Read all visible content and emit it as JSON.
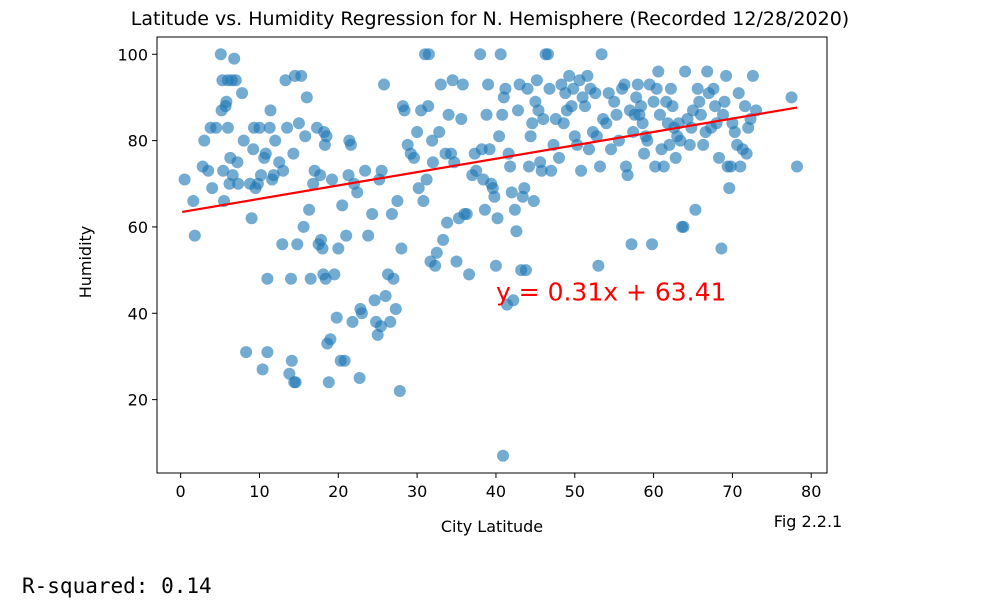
{
  "chart_data": {
    "type": "scatter",
    "title": "Latitude vs. Humidity Regression for N. Hemisphere (Recorded 12/28/2020)",
    "xlabel": "City Latitude",
    "ylabel": "Humidity",
    "xlim": [
      -3,
      82
    ],
    "ylim": [
      3,
      104
    ],
    "xticks": [
      0,
      10,
      20,
      30,
      40,
      50,
      60,
      70,
      80
    ],
    "yticks": [
      20,
      40,
      60,
      80,
      100
    ],
    "grid": false,
    "point_color": "#1f77b4",
    "line_color": "#ff0000",
    "regression": {
      "slope": 0.31,
      "intercept": 63.41,
      "x_range": [
        0.2,
        78.2
      ],
      "equation_label": "y = 0.31x + 63.41",
      "label_at": [
        40,
        45
      ]
    },
    "figure_label": "Fig 2.2.1",
    "points": [
      [
        0.5,
        71
      ],
      [
        1.6,
        66
      ],
      [
        1.8,
        58
      ],
      [
        2.8,
        74
      ],
      [
        3,
        80
      ],
      [
        3.5,
        73
      ],
      [
        3.8,
        83
      ],
      [
        4,
        69
      ],
      [
        4.5,
        83
      ],
      [
        5.1,
        100
      ],
      [
        5.2,
        87
      ],
      [
        5.3,
        94
      ],
      [
        5.4,
        73
      ],
      [
        5.5,
        66
      ],
      [
        5.7,
        88
      ],
      [
        5.8,
        89
      ],
      [
        6,
        83
      ],
      [
        6,
        94
      ],
      [
        6.2,
        70
      ],
      [
        6.3,
        76
      ],
      [
        6.5,
        94
      ],
      [
        6.6,
        72
      ],
      [
        6.8,
        99
      ],
      [
        7,
        94
      ],
      [
        7.2,
        75
      ],
      [
        7.3,
        70
      ],
      [
        7.8,
        91
      ],
      [
        8,
        80
      ],
      [
        8.3,
        31
      ],
      [
        8.8,
        70
      ],
      [
        9,
        62
      ],
      [
        9.2,
        78
      ],
      [
        9.3,
        83
      ],
      [
        9.5,
        69
      ],
      [
        9.8,
        70
      ],
      [
        10,
        83
      ],
      [
        10.2,
        72
      ],
      [
        10.4,
        27
      ],
      [
        10.6,
        76
      ],
      [
        10.8,
        77
      ],
      [
        11,
        31
      ],
      [
        11,
        48
      ],
      [
        11.3,
        83
      ],
      [
        11.4,
        87
      ],
      [
        11.6,
        71
      ],
      [
        11.8,
        72
      ],
      [
        12,
        80
      ],
      [
        12.5,
        75
      ],
      [
        12.9,
        56
      ],
      [
        13,
        73
      ],
      [
        13.3,
        94
      ],
      [
        13.5,
        83
      ],
      [
        13.8,
        26
      ],
      [
        14,
        48
      ],
      [
        14.1,
        29
      ],
      [
        14.3,
        77
      ],
      [
        14.4,
        24
      ],
      [
        14.5,
        95
      ],
      [
        14.6,
        24
      ],
      [
        14.8,
        56
      ],
      [
        15,
        84
      ],
      [
        15.3,
        95
      ],
      [
        15.6,
        60
      ],
      [
        15.8,
        81
      ],
      [
        16,
        90
      ],
      [
        16.3,
        64
      ],
      [
        16.5,
        48
      ],
      [
        16.8,
        70
      ],
      [
        17,
        73
      ],
      [
        17.3,
        83
      ],
      [
        17.5,
        56
      ],
      [
        17.7,
        72
      ],
      [
        17.8,
        57
      ],
      [
        18,
        55
      ],
      [
        18.1,
        49
      ],
      [
        18.2,
        82
      ],
      [
        18.3,
        79
      ],
      [
        18.4,
        48
      ],
      [
        18.5,
        81
      ],
      [
        18.6,
        33
      ],
      [
        18.8,
        24
      ],
      [
        19,
        34
      ],
      [
        19.2,
        71
      ],
      [
        19.5,
        49
      ],
      [
        19.8,
        39
      ],
      [
        20,
        55
      ],
      [
        20.3,
        29
      ],
      [
        20.5,
        65
      ],
      [
        20.8,
        29
      ],
      [
        21,
        58
      ],
      [
        21.3,
        72
      ],
      [
        21.4,
        80
      ],
      [
        21.6,
        79
      ],
      [
        21.8,
        38
      ],
      [
        22,
        70
      ],
      [
        22.4,
        68
      ],
      [
        22.7,
        25
      ],
      [
        22.8,
        41
      ],
      [
        23,
        40
      ],
      [
        23.4,
        73
      ],
      [
        23.8,
        58
      ],
      [
        24.3,
        63
      ],
      [
        24.6,
        43
      ],
      [
        24.8,
        38
      ],
      [
        25,
        35
      ],
      [
        25.2,
        71
      ],
      [
        25.4,
        37
      ],
      [
        25.5,
        73
      ],
      [
        25.8,
        93
      ],
      [
        26,
        44
      ],
      [
        26.3,
        49
      ],
      [
        26.6,
        38
      ],
      [
        26.8,
        63
      ],
      [
        27,
        48
      ],
      [
        27.3,
        41
      ],
      [
        27.5,
        66
      ],
      [
        27.8,
        22
      ],
      [
        28,
        55
      ],
      [
        28.2,
        88
      ],
      [
        28.4,
        87
      ],
      [
        28.8,
        79
      ],
      [
        29.2,
        77
      ],
      [
        29.6,
        76
      ],
      [
        30,
        82
      ],
      [
        30.2,
        69
      ],
      [
        30.5,
        87
      ],
      [
        30.8,
        66
      ],
      [
        31,
        100
      ],
      [
        31.2,
        71
      ],
      [
        31.4,
        88
      ],
      [
        31.5,
        100
      ],
      [
        31.7,
        52
      ],
      [
        31.9,
        80
      ],
      [
        32,
        75
      ],
      [
        32.3,
        51
      ],
      [
        32.5,
        54
      ],
      [
        32.8,
        82
      ],
      [
        33,
        93
      ],
      [
        33.3,
        57
      ],
      [
        33.6,
        77
      ],
      [
        33.8,
        61
      ],
      [
        34,
        86
      ],
      [
        34.3,
        77
      ],
      [
        34.5,
        94
      ],
      [
        34.7,
        75
      ],
      [
        35,
        52
      ],
      [
        35.3,
        62
      ],
      [
        35.6,
        85
      ],
      [
        35.8,
        93
      ],
      [
        36,
        63
      ],
      [
        36.3,
        63
      ],
      [
        36.6,
        49
      ],
      [
        37,
        72
      ],
      [
        37.3,
        77
      ],
      [
        37.5,
        73
      ],
      [
        38,
        100
      ],
      [
        38.2,
        78
      ],
      [
        38.4,
        71
      ],
      [
        38.6,
        64
      ],
      [
        38.8,
        86
      ],
      [
        39,
        93
      ],
      [
        39.2,
        78
      ],
      [
        39.4,
        70
      ],
      [
        39.6,
        69
      ],
      [
        39.8,
        67
      ],
      [
        40,
        51
      ],
      [
        40.2,
        62
      ],
      [
        40.4,
        81
      ],
      [
        40.6,
        100
      ],
      [
        40.8,
        86
      ],
      [
        41,
        90
      ],
      [
        41.2,
        92
      ],
      [
        41.4,
        42
      ],
      [
        41.6,
        77
      ],
      [
        41.8,
        74
      ],
      [
        42,
        68
      ],
      [
        42.2,
        43
      ],
      [
        42.4,
        64
      ],
      [
        42.6,
        59
      ],
      [
        42.8,
        87
      ],
      [
        43,
        93
      ],
      [
        43.2,
        50
      ],
      [
        43.4,
        67
      ],
      [
        43.6,
        69
      ],
      [
        43.8,
        50
      ],
      [
        44,
        92
      ],
      [
        44.2,
        74
      ],
      [
        44.4,
        81
      ],
      [
        44.6,
        84
      ],
      [
        44.8,
        66
      ],
      [
        45,
        89
      ],
      [
        45.2,
        94
      ],
      [
        45.4,
        87
      ],
      [
        45.6,
        75
      ],
      [
        45.8,
        73
      ],
      [
        46,
        85
      ],
      [
        46.3,
        100
      ],
      [
        46.6,
        100
      ],
      [
        46.8,
        92
      ],
      [
        47,
        73
      ],
      [
        47.3,
        79
      ],
      [
        47.6,
        85
      ],
      [
        48,
        76
      ],
      [
        48.3,
        93
      ],
      [
        48.6,
        84
      ],
      [
        48.8,
        91
      ],
      [
        49,
        87
      ],
      [
        49.3,
        95
      ],
      [
        49.6,
        88
      ],
      [
        49.8,
        92
      ],
      [
        50,
        81
      ],
      [
        50.3,
        79
      ],
      [
        50.6,
        94
      ],
      [
        50.8,
        73
      ],
      [
        51,
        90
      ],
      [
        51.3,
        88
      ],
      [
        51.6,
        95
      ],
      [
        51.8,
        78
      ],
      [
        52,
        92
      ],
      [
        52.3,
        82
      ],
      [
        52.6,
        91
      ],
      [
        52.8,
        81
      ],
      [
        53,
        51
      ],
      [
        53.2,
        74
      ],
      [
        53.4,
        100
      ],
      [
        53.6,
        85
      ],
      [
        54,
        84
      ],
      [
        54.3,
        91
      ],
      [
        54.6,
        78
      ],
      [
        55,
        89
      ],
      [
        55.3,
        86
      ],
      [
        55.6,
        80
      ],
      [
        56,
        92
      ],
      [
        56.3,
        93
      ],
      [
        56.5,
        74
      ],
      [
        56.7,
        72
      ],
      [
        57,
        87
      ],
      [
        57.2,
        56
      ],
      [
        57.4,
        82
      ],
      [
        57.6,
        86
      ],
      [
        57.8,
        90
      ],
      [
        58,
        93
      ],
      [
        58.2,
        86
      ],
      [
        58.4,
        88
      ],
      [
        58.6,
        84
      ],
      [
        58.8,
        77
      ],
      [
        59,
        81
      ],
      [
        59.2,
        80
      ],
      [
        59.5,
        93
      ],
      [
        59.8,
        56
      ],
      [
        60,
        89
      ],
      [
        60.2,
        74
      ],
      [
        60.4,
        92
      ],
      [
        60.6,
        96
      ],
      [
        60.8,
        86
      ],
      [
        61,
        78
      ],
      [
        61.3,
        74
      ],
      [
        61.6,
        89
      ],
      [
        61.8,
        84
      ],
      [
        62,
        79
      ],
      [
        62.2,
        92
      ],
      [
        62.4,
        88
      ],
      [
        62.6,
        83
      ],
      [
        62.8,
        76
      ],
      [
        63,
        81
      ],
      [
        63.2,
        84
      ],
      [
        63.4,
        80
      ],
      [
        63.6,
        60
      ],
      [
        63.8,
        60
      ],
      [
        64,
        96
      ],
      [
        64.3,
        85
      ],
      [
        64.6,
        79
      ],
      [
        64.8,
        83
      ],
      [
        65,
        87
      ],
      [
        65.3,
        64
      ],
      [
        65.6,
        92
      ],
      [
        65.8,
        89
      ],
      [
        66,
        86
      ],
      [
        66.3,
        79
      ],
      [
        66.6,
        82
      ],
      [
        66.8,
        96
      ],
      [
        67,
        91
      ],
      [
        67.3,
        83
      ],
      [
        67.6,
        92
      ],
      [
        67.8,
        88
      ],
      [
        68,
        84
      ],
      [
        68.3,
        76
      ],
      [
        68.6,
        55
      ],
      [
        68.8,
        86
      ],
      [
        69,
        89
      ],
      [
        69.2,
        95
      ],
      [
        69.4,
        74
      ],
      [
        69.6,
        69
      ],
      [
        69.8,
        74
      ],
      [
        70,
        84
      ],
      [
        70.3,
        82
      ],
      [
        70.6,
        79
      ],
      [
        70.8,
        91
      ],
      [
        71,
        74
      ],
      [
        71.3,
        78
      ],
      [
        71.6,
        88
      ],
      [
        71.8,
        77
      ],
      [
        72,
        83
      ],
      [
        72.3,
        85
      ],
      [
        72.6,
        95
      ],
      [
        73,
        87
      ],
      [
        77.5,
        90
      ],
      [
        78.2,
        74
      ],
      [
        40.9,
        7
      ]
    ]
  },
  "footer": {
    "r_squared": "R-squared: 0.14"
  }
}
